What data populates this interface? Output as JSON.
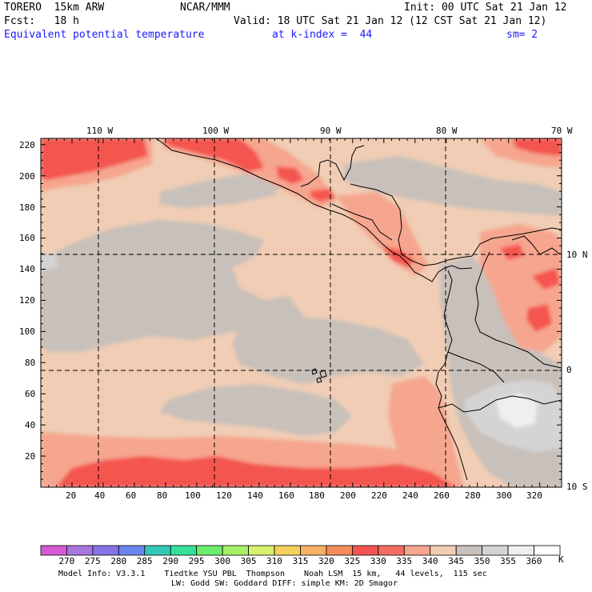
{
  "header": {
    "model": "TORERO  15km ARW",
    "center": "NCAR/MMM",
    "init": "Init: 00 UTC Sat 21 Jan 12",
    "fcst": "Fcst:   18 h",
    "valid": "Valid: 18 UTC Sat 21 Jan 12 (12 CST Sat 21 Jan 12)",
    "field": "Equivalent potential temperature",
    "level": "at k-index =  44",
    "smooth": "sm= 2"
  },
  "axes": {
    "top_lon_labels": [
      "110 W",
      "100 W",
      "90 W",
      "80 W",
      "70 W"
    ],
    "right_lat_labels": [
      "10 N",
      "0",
      "10 S"
    ],
    "left_ticks": [
      "220",
      "200",
      "180",
      "160",
      "140",
      "120",
      "100",
      "80",
      "60",
      "40",
      "20"
    ],
    "bottom_ticks": [
      "20",
      "40",
      "60",
      "80",
      "100",
      "120",
      "140",
      "160",
      "180",
      "200",
      "220",
      "240",
      "260",
      "280",
      "300",
      "320"
    ]
  },
  "colorbar": {
    "levels": [
      "270",
      "275",
      "280",
      "285",
      "290",
      "295",
      "300",
      "305",
      "310",
      "315",
      "320",
      "325",
      "330",
      "335",
      "340",
      "345",
      "350",
      "355",
      "360"
    ],
    "unit": "K",
    "colors": [
      "#d55ad5",
      "#a876df",
      "#8872e8",
      "#6a86ee",
      "#33c9b7",
      "#35e09a",
      "#6cee6c",
      "#a8f06a",
      "#d6f06c",
      "#f6d05c",
      "#f7b064",
      "#f58c5e",
      "#f45450",
      "#f26d60",
      "#f6a58e",
      "#f0cdb4",
      "#c8c0ba",
      "#d4d4d4",
      "#efefef",
      "#ffffff"
    ]
  },
  "field_colors": {
    "bg": "#f0cdb4",
    "gray": "#c8c0ba",
    "light_gray": "#d4d4d4",
    "white": "#efefef",
    "salmon": "#f6a58e",
    "red": "#f45450"
  },
  "footer": {
    "line1": "Model Info: V3.3.1    Tiedtke YSU PBL  Thompson    Noah LSM  15 km,   44 levels,  115 sec",
    "line2": "LW: Godd SW: Goddard DIFF: simple KM: 2D Smagor"
  }
}
